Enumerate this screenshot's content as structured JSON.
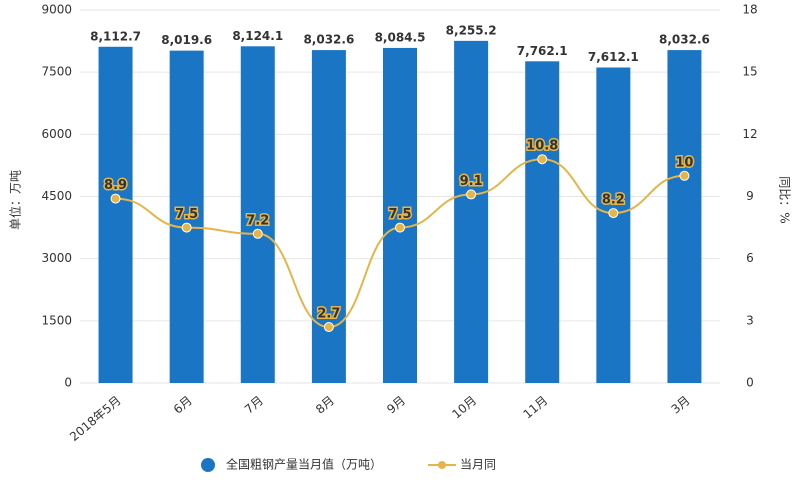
{
  "chart_data": {
    "type": "bar-line",
    "categories": [
      "2018年5月",
      "6月",
      "7月",
      "8月",
      "9月",
      "10月",
      "11月",
      null,
      "3月"
    ],
    "series": [
      {
        "name": "全国粗钢产量当月值（万吨）",
        "type": "bar",
        "color": "#1a75c4",
        "values": [
          8112.7,
          8019.6,
          8124.1,
          8032.6,
          8084.5,
          8255.2,
          7762.1,
          7612.1,
          8032.6
        ],
        "value_labels": [
          "8,112.7",
          "8,019.6",
          "8,124.1",
          "8,032.6",
          "8,084.5",
          "8,255.2",
          "7,762.1",
          "7,612.1",
          "8,032.6"
        ]
      },
      {
        "name": "当月同",
        "type": "line",
        "axis": "y2",
        "color": "#e6b54a",
        "values": [
          8.9,
          7.5,
          7.2,
          2.7,
          7.5,
          9.1,
          10.8,
          8.2,
          10
        ]
      }
    ],
    "y_label": "单位：万吨",
    "y2_label": "同比：%",
    "ylim": [
      0,
      9000
    ],
    "yticks": [
      0,
      1500,
      3000,
      4500,
      6000,
      7500,
      9000
    ],
    "y2lim": [
      0,
      18
    ],
    "y2ticks": [
      0,
      3,
      6,
      9,
      12,
      15,
      18
    ],
    "grid": true
  }
}
